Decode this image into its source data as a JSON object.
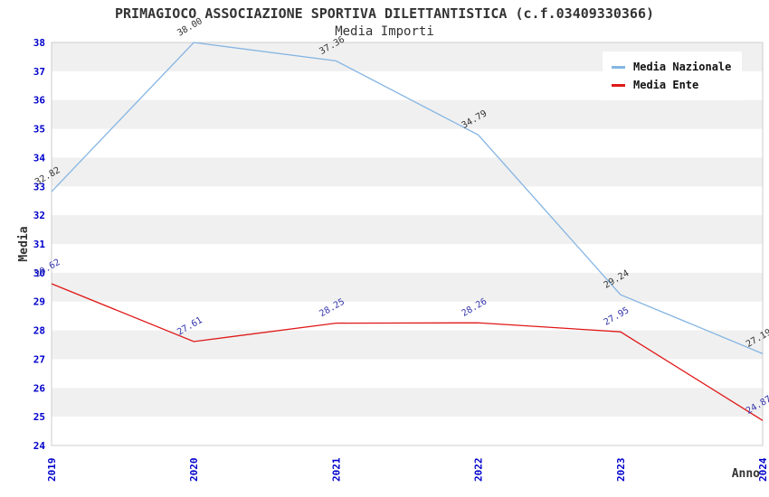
{
  "header": {
    "title": "PRIMAGIOCO ASSOCIAZIONE SPORTIVA DILETTANTISTICA (c.f.03409330366)",
    "subtitle": "Media Importi"
  },
  "legend": {
    "items": [
      {
        "label": "Media Nazionale",
        "color": "#85b5e3"
      },
      {
        "label": "Media Ente",
        "color": "#e01818"
      }
    ]
  },
  "colors": {
    "tick_label": "#0000cc",
    "axis_title": "#333333",
    "band_gray": "#f0f0f0",
    "plot_border": "#cccccc",
    "title_text": "#333333"
  },
  "chart_data": {
    "type": "line",
    "title": "PRIMAGIOCO ASSOCIAZIONE SPORTIVA DILETTANTISTICA (c.f.03409330366)",
    "subtitle": "Media Importi",
    "xlabel": "Anno",
    "ylabel": "Media",
    "x": [
      2019,
      2020,
      2021,
      2022,
      2023,
      2024
    ],
    "x_tick_labels": [
      "2019",
      "2020",
      "2021",
      "2022",
      "2023",
      "2024"
    ],
    "y_tick_labels": [
      "38",
      "37",
      "36",
      "35",
      "34",
      "33",
      "32",
      "31",
      "30",
      "29",
      "28",
      "27",
      "26",
      "25",
      "24"
    ],
    "ylim": [
      24,
      38
    ],
    "ytick_step": 1,
    "grid": "horizontal-bands",
    "legend_position": "top-right",
    "series": [
      {
        "name": "Media Nazionale",
        "color": "#85b5e3",
        "label_color": "#333333",
        "values": [
          32.82,
          38.0,
          37.36,
          34.79,
          29.24,
          27.19
        ],
        "value_labels": [
          "32.82",
          "38.00",
          "37.36",
          "34.79",
          "29.24",
          "27.19"
        ]
      },
      {
        "name": "Media Ente",
        "color": "#e01818",
        "label_color": "#3333aa",
        "values": [
          29.62,
          27.61,
          28.25,
          28.26,
          27.95,
          24.87
        ],
        "value_labels": [
          "29.62",
          "27.61",
          "28.25",
          "28.26",
          "27.95",
          "24.87"
        ]
      }
    ]
  }
}
